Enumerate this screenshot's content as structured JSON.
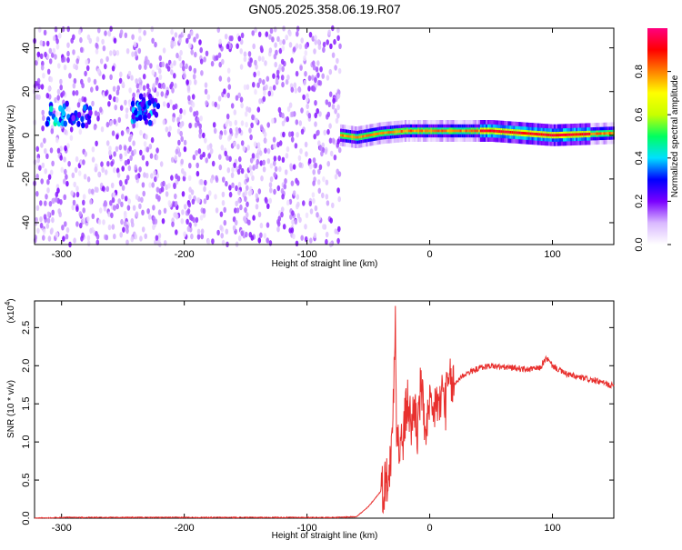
{
  "title": "GN05.2025.358.06.19.R07",
  "chart_data": [
    {
      "type": "heatmap",
      "xlabel": "Height of straight line (km)",
      "ylabel": "Frequency (Hz)",
      "xlim": [
        -322,
        150
      ],
      "ylim": [
        -50,
        49
      ],
      "xticks": [
        -300,
        -200,
        -100,
        0,
        100
      ],
      "yticks": [
        -40,
        -20,
        0,
        20,
        40
      ],
      "colorbar": {
        "label": "Normalized spectral amplitude",
        "range": [
          0,
          1
        ],
        "ticks": [
          0.0,
          0.2,
          0.4,
          0.6,
          0.8
        ],
        "colormap": [
          "#ffffff",
          "#d9b8ff",
          "#7a00ff",
          "#0000ff",
          "#00e0ff",
          "#00ff60",
          "#c8ff00",
          "#ffff00",
          "#ff8000",
          "#ff0000",
          "#ff0080"
        ]
      },
      "regions": {
        "noise_band": {
          "x_range": [
            -322,
            -73
          ],
          "y_range": [
            -50,
            49
          ],
          "amplitude": 0.1
        },
        "tone_line": {
          "x_range": [
            -73,
            150
          ],
          "frequency_points": [
            [
              -73,
              0
            ],
            [
              -60,
              -1
            ],
            [
              -50,
              0
            ],
            [
              -40,
              1
            ],
            [
              -20,
              2
            ],
            [
              0,
              2
            ],
            [
              50,
              2
            ],
            [
              100,
              0
            ],
            [
              150,
              1
            ]
          ],
          "peak_amplitude": 0.95
        },
        "hotspots": [
          {
            "x": -303,
            "y": 10,
            "amplitude": 0.4
          },
          {
            "x": -285,
            "y": 8,
            "amplitude": 0.3
          },
          {
            "x": -235,
            "y": 10,
            "amplitude": 0.35
          },
          {
            "x": -228,
            "y": 13,
            "amplitude": 0.3
          }
        ]
      }
    },
    {
      "type": "line",
      "xlabel": "Height of straight line (km)",
      "ylabel": "SNR (10 * v/v)",
      "yscale_label": "(x10",
      "yscale_exponent": "4",
      "xlim": [
        -322,
        150
      ],
      "ylim": [
        0,
        2.85
      ],
      "xticks": [
        -300,
        -200,
        -100,
        0,
        100
      ],
      "yticks": [
        0.0,
        0.5,
        1.0,
        1.5,
        2.0,
        2.5
      ],
      "series": [
        {
          "color": "#e8302e",
          "points": [
            [
              -322,
              0.0
            ],
            [
              -300,
              0.01
            ],
            [
              -250,
              0.01
            ],
            [
              -200,
              0.01
            ],
            [
              -150,
              0.01
            ],
            [
              -100,
              0.01
            ],
            [
              -75,
              0.01
            ],
            [
              -60,
              0.02
            ],
            [
              -55,
              0.08
            ],
            [
              -50,
              0.15
            ],
            [
              -45,
              0.25
            ],
            [
              -40,
              0.35
            ],
            [
              -35,
              0.5
            ],
            [
              -32,
              0.7
            ],
            [
              -30,
              1.3
            ],
            [
              -28,
              2.85
            ],
            [
              -27,
              1.2
            ],
            [
              -25,
              0.9
            ],
            [
              -22,
              1.0
            ],
            [
              -20,
              1.3
            ],
            [
              -18,
              1.55
            ],
            [
              -15,
              1.2
            ],
            [
              -12,
              1.5
            ],
            [
              -10,
              1.1
            ],
            [
              -7,
              1.8
            ],
            [
              -5,
              1.3
            ],
            [
              -2,
              1.2
            ],
            [
              0,
              1.4
            ],
            [
              3,
              1.3
            ],
            [
              5,
              1.6
            ],
            [
              8,
              1.4
            ],
            [
              10,
              1.7
            ],
            [
              13,
              1.5
            ],
            [
              15,
              1.75
            ],
            [
              20,
              1.75
            ],
            [
              25,
              1.85
            ],
            [
              30,
              1.9
            ],
            [
              35,
              1.93
            ],
            [
              40,
              1.97
            ],
            [
              50,
              2.0
            ],
            [
              60,
              1.98
            ],
            [
              70,
              1.97
            ],
            [
              80,
              1.95
            ],
            [
              90,
              1.97
            ],
            [
              95,
              2.1
            ],
            [
              100,
              2.0
            ],
            [
              110,
              1.9
            ],
            [
              120,
              1.85
            ],
            [
              130,
              1.82
            ],
            [
              140,
              1.78
            ],
            [
              150,
              1.73
            ]
          ]
        }
      ]
    }
  ]
}
